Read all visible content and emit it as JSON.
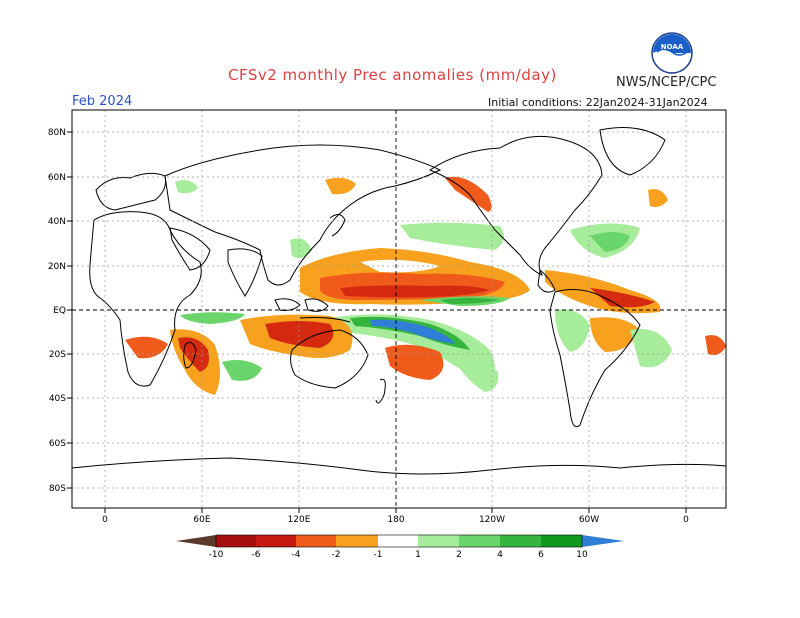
{
  "header": {
    "title": "CFSv2 monthly Prec anomalies (mm/day)",
    "agency": "NWS/NCEP/CPC",
    "month": "Feb 2024",
    "initial_conditions": "Initial conditions: 22Jan2024-31Jan2024"
  },
  "logo": {
    "text": "NOAA",
    "icon": "noaa-logo-icon"
  },
  "map": {
    "lat_labels": [
      "80N",
      "60N",
      "40N",
      "20N",
      "EQ",
      "20S",
      "40S",
      "60S",
      "80S"
    ],
    "lon_labels": [
      "0",
      "60E",
      "120E",
      "180",
      "120W",
      "60W",
      "0"
    ]
  },
  "colorbar": {
    "labels": [
      "-10",
      "-6",
      "-4",
      "-2",
      "-1",
      "1",
      "2",
      "4",
      "6",
      "10"
    ],
    "colors": [
      "#5a3a2c",
      "#a50f0f",
      "#d62a10",
      "#f05a1a",
      "#f7a11e",
      "#ffffff",
      "#a6ec9a",
      "#6ad56a",
      "#35b53d",
      "#1e9626",
      "#0f7d18",
      "#2f7fd6"
    ]
  },
  "colors": {
    "title": "#e04040",
    "month": "#2d4fd0",
    "dry_strong": "#d62a10",
    "dry_mid": "#f05a1a",
    "dry_weak": "#f7a11e",
    "wet_weak": "#a6ec9a",
    "wet_mid": "#35b53d",
    "wet_strong": "#2f7fd6"
  }
}
